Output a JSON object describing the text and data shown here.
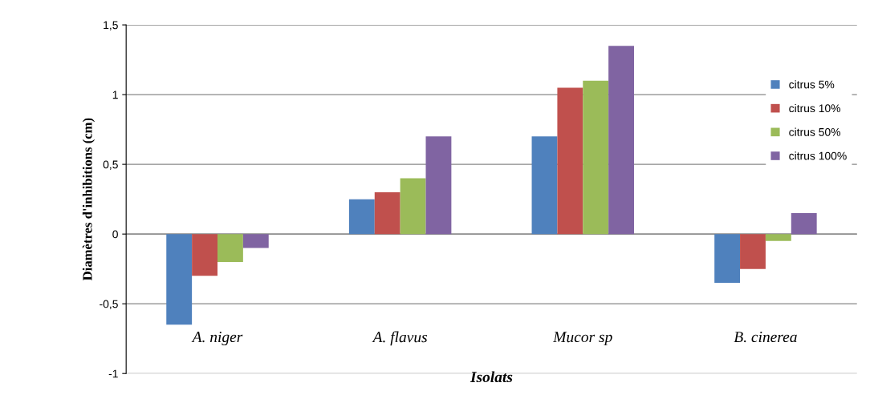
{
  "chart_data": {
    "type": "bar",
    "xlabel": "Isolats",
    "ylabel": "Diamètres d'inhibitions (cm)",
    "categories": [
      "A. niger",
      "A. flavus",
      "Mucor sp",
      "B. cinerea"
    ],
    "series": [
      {
        "name": "citrus 5%",
        "color": "#4f81bd",
        "values": [
          -0.65,
          0.25,
          0.7,
          -0.35
        ]
      },
      {
        "name": "citrus 10%",
        "color": "#c0504d",
        "values": [
          -0.3,
          0.3,
          1.05,
          -0.25
        ]
      },
      {
        "name": "citrus 50%",
        "color": "#9bbb59",
        "values": [
          -0.2,
          0.4,
          1.1,
          -0.05
        ]
      },
      {
        "name": "citrus 100%",
        "color": "#8064a2",
        "values": [
          -0.1,
          0.7,
          1.35,
          0.15
        ]
      }
    ],
    "ylim": [
      -1,
      1.5
    ],
    "yticks": [
      {
        "value": -1,
        "label": "-1"
      },
      {
        "value": -0.5,
        "label": "-0,5"
      },
      {
        "value": 0,
        "label": "0"
      },
      {
        "value": 0.5,
        "label": "0,5"
      },
      {
        "value": 1,
        "label": "1"
      },
      {
        "value": 1.5,
        "label": "1,5"
      }
    ],
    "grid": "y",
    "legend": "upper right"
  }
}
